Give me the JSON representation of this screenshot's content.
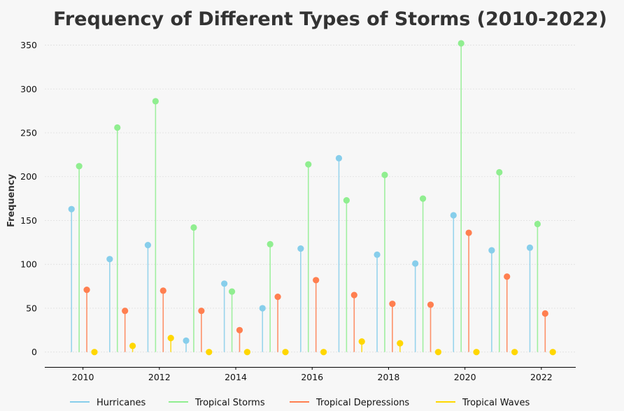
{
  "chart_data": {
    "type": "stem",
    "title": "Frequency of Different Types of Storms (2010-2022)",
    "xlabel": "",
    "ylabel": "Frequency",
    "x": [
      2010,
      2011,
      2012,
      2013,
      2014,
      2015,
      2016,
      2017,
      2018,
      2019,
      2020,
      2021,
      2022
    ],
    "xticks": [
      2010,
      2012,
      2014,
      2016,
      2018,
      2020,
      2022
    ],
    "yticks": [
      0,
      50,
      100,
      150,
      200,
      250,
      300,
      350
    ],
    "xlim": [
      2009,
      2022.9
    ],
    "ylim": [
      -17,
      360
    ],
    "grid": true,
    "legend_position": "bottom",
    "series": [
      {
        "name": "Hurricanes",
        "color": "#87ceeb",
        "offset": -0.3,
        "values": [
          163,
          106,
          122,
          13,
          78,
          50,
          118,
          221,
          111,
          101,
          156,
          116,
          119
        ]
      },
      {
        "name": "Tropical Storms",
        "color": "#90ee90",
        "offset": -0.1,
        "values": [
          212,
          256,
          286,
          142,
          69,
          123,
          214,
          173,
          202,
          175,
          352,
          205,
          146
        ]
      },
      {
        "name": "Tropical Depressions",
        "color": "#ff7f50",
        "offset": 0.1,
        "values": [
          71,
          47,
          70,
          47,
          25,
          63,
          82,
          65,
          55,
          54,
          136,
          86,
          44
        ]
      },
      {
        "name": "Tropical Waves",
        "color": "#ffd700",
        "offset": 0.3,
        "values": [
          0,
          7,
          16,
          0,
          0,
          0,
          0,
          12,
          10,
          0,
          0,
          0,
          0
        ]
      }
    ]
  }
}
